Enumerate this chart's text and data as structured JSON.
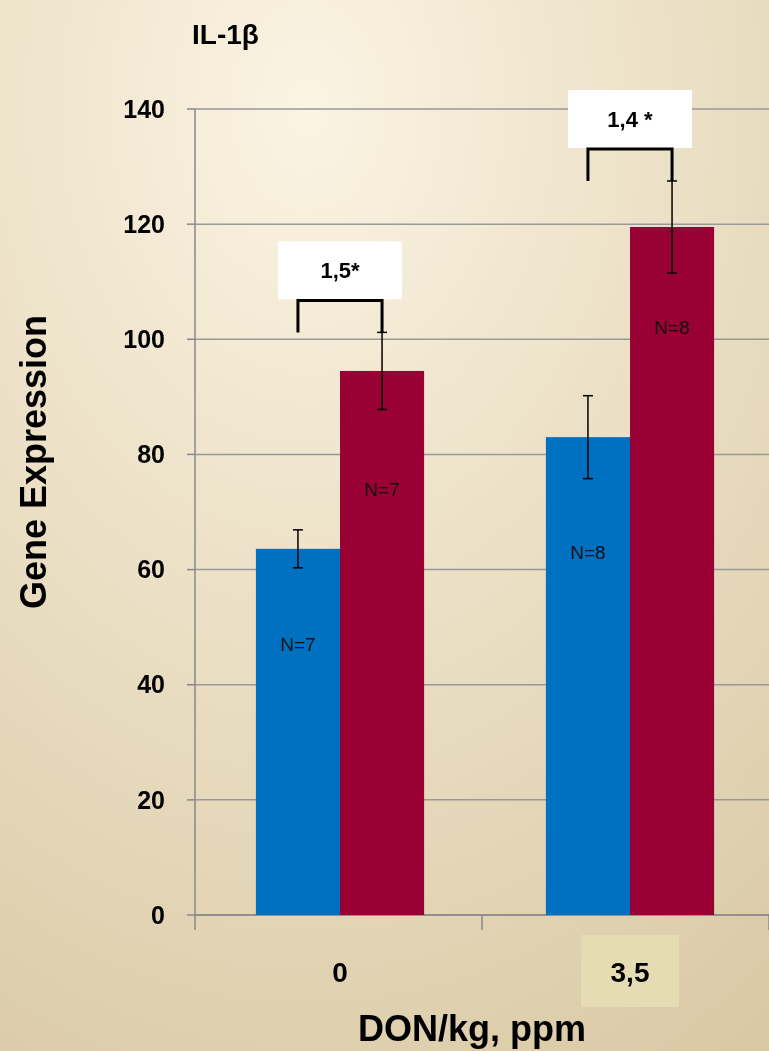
{
  "chart_data": {
    "type": "bar",
    "title": "IL-1β",
    "xlabel": "DON/kg, ppm",
    "ylabel": "Gene Expression",
    "categories": [
      "0",
      "3,5"
    ],
    "series": [
      {
        "color": "#0070c0",
        "values": [
          63.6,
          83.0
        ],
        "errors": [
          3.3,
          7.2
        ]
      },
      {
        "color": "#990033",
        "values": [
          94.5,
          119.5
        ],
        "errors": [
          6.7,
          8.0
        ]
      }
    ],
    "ylim": [
      0,
      140
    ],
    "yticks": [
      0,
      20,
      40,
      60,
      80,
      100,
      120,
      140
    ],
    "grid": "y",
    "annotations": [
      {
        "text": "N=7",
        "x": "0",
        "y": 47
      },
      {
        "text": "N=7",
        "x": "0",
        "y": 74
      },
      {
        "text": "N=8",
        "x": "3,5",
        "y": 63
      },
      {
        "text": "N=8",
        "x": "3,5",
        "y": 102
      },
      "1,5*",
      "1,4 *"
    ]
  }
}
